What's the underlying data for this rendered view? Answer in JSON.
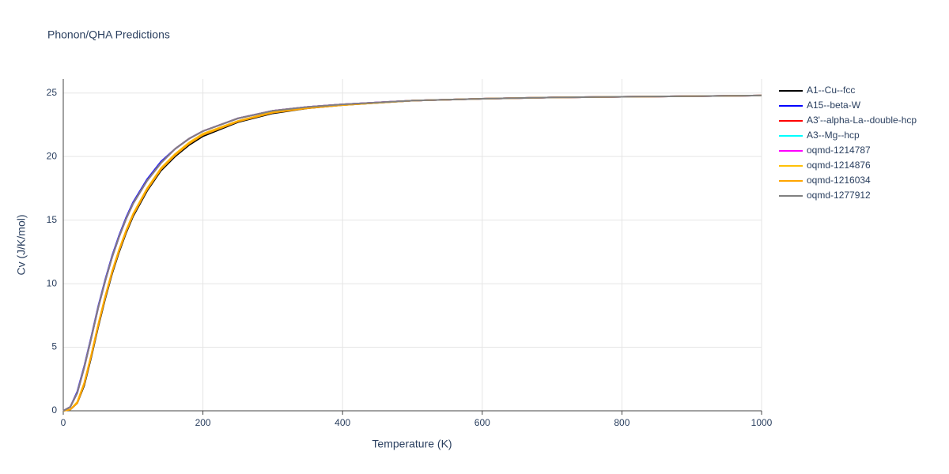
{
  "chart_data": {
    "type": "line",
    "title": "Phonon/QHA Predictions",
    "x_label": "Temperature (K)",
    "y_label": "Cv (J/K/mol)",
    "x": [
      0,
      10,
      20,
      30,
      40,
      50,
      60,
      70,
      80,
      90,
      100,
      120,
      140,
      160,
      180,
      200,
      250,
      300,
      350,
      400,
      500,
      600,
      700,
      800,
      900,
      1000
    ],
    "series": [
      {
        "name": "A1--Cu--fcc",
        "color": "#000000",
        "values": [
          0,
          0.1,
          0.6,
          2.0,
          4.2,
          6.6,
          8.8,
          10.8,
          12.5,
          14.0,
          15.3,
          17.3,
          18.9,
          20.0,
          20.9,
          21.6,
          22.7,
          23.4,
          23.8,
          24.05,
          24.4,
          24.55,
          24.65,
          24.7,
          24.75,
          24.8
        ]
      },
      {
        "name": "A15--beta-W",
        "color": "#0000ff",
        "values": [
          0,
          0.3,
          1.5,
          3.5,
          5.8,
          8.2,
          10.3,
          12.2,
          13.8,
          15.2,
          16.4,
          18.2,
          19.6,
          20.6,
          21.4,
          22.0,
          23.0,
          23.6,
          23.9,
          24.1,
          24.4,
          24.55,
          24.65,
          24.7,
          24.75,
          24.8
        ]
      },
      {
        "name": "A3'--alpha-La--double-hcp",
        "color": "#ff0000",
        "values": [
          0,
          0.3,
          1.4,
          3.4,
          5.7,
          8.1,
          10.2,
          12.1,
          13.7,
          15.1,
          16.3,
          18.1,
          19.5,
          20.6,
          21.4,
          22.0,
          23.0,
          23.6,
          23.9,
          24.1,
          24.4,
          24.55,
          24.65,
          24.7,
          24.75,
          24.8
        ]
      },
      {
        "name": "A3--Mg--hcp",
        "color": "#00ffff",
        "values": [
          0,
          0.3,
          1.4,
          3.4,
          5.7,
          8.1,
          10.2,
          12.1,
          13.7,
          15.1,
          16.3,
          18.1,
          19.5,
          20.6,
          21.4,
          22.0,
          23.0,
          23.6,
          23.9,
          24.1,
          24.4,
          24.55,
          24.65,
          24.7,
          24.75,
          24.8
        ]
      },
      {
        "name": "oqmd-1214787",
        "color": "#ff00ff",
        "values": [
          0,
          0.3,
          1.4,
          3.4,
          5.7,
          8.1,
          10.2,
          12.1,
          13.7,
          15.1,
          16.3,
          18.1,
          19.5,
          20.6,
          21.4,
          22.0,
          23.0,
          23.6,
          23.9,
          24.1,
          24.4,
          24.55,
          24.65,
          24.7,
          24.75,
          24.8
        ]
      },
      {
        "name": "oqmd-1214876",
        "color": "#ffc107",
        "values": [
          0,
          0.1,
          0.7,
          2.2,
          4.4,
          6.8,
          9.0,
          11.0,
          12.7,
          14.2,
          15.5,
          17.5,
          19.1,
          20.2,
          21.1,
          21.8,
          22.8,
          23.5,
          23.85,
          24.05,
          24.4,
          24.55,
          24.65,
          24.7,
          24.75,
          24.8
        ]
      },
      {
        "name": "oqmd-1216034",
        "color": "#ffa500",
        "values": [
          0,
          0.1,
          0.6,
          2.1,
          4.3,
          6.7,
          8.9,
          10.9,
          12.6,
          14.1,
          15.4,
          17.4,
          19.0,
          20.1,
          21.0,
          21.7,
          22.75,
          23.45,
          23.8,
          24.05,
          24.4,
          24.55,
          24.65,
          24.7,
          24.75,
          24.8
        ]
      },
      {
        "name": "oqmd-1277912",
        "color": "#808080",
        "values": [
          0,
          0.3,
          1.4,
          3.4,
          5.7,
          8.1,
          10.2,
          12.1,
          13.7,
          15.1,
          16.3,
          18.1,
          19.5,
          20.6,
          21.4,
          22.0,
          23.0,
          23.6,
          23.9,
          24.1,
          24.4,
          24.55,
          24.65,
          24.7,
          24.75,
          24.8
        ]
      }
    ],
    "xlim": [
      0,
      1000
    ],
    "ylim": [
      0,
      26.1
    ],
    "xticks": [
      0,
      200,
      400,
      600,
      800,
      1000
    ],
    "yticks": [
      0,
      5,
      10,
      15,
      20,
      25
    ],
    "grid": true,
    "legend": "right"
  }
}
